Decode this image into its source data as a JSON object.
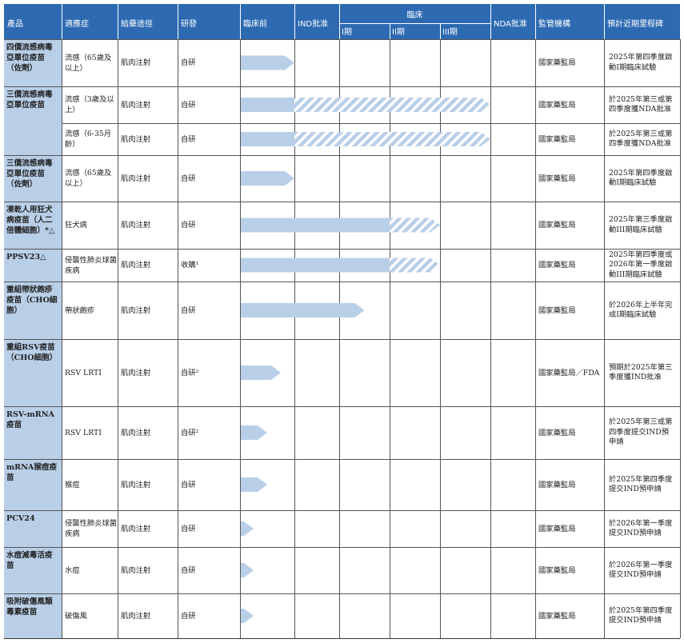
{
  "header": {
    "product": "產品",
    "indication": "適應症",
    "route": "給藥途徑",
    "rnd": "研發",
    "preclinical": "臨床前",
    "ind": "IND批准",
    "clinical": "臨床",
    "phase1": "I期",
    "phase2": "II期",
    "phase3": "III期",
    "nda": "NDA批准",
    "regulator": "監管機構",
    "milestone": "預計近期里程碑"
  },
  "colors": {
    "header_bg": "#2d6ab2",
    "product_bg": "#b9cfe8",
    "bar_fill": "#b9cfe8"
  },
  "products": [
    {
      "name": "四價流感病毒亞單位疫苗（佐劑）"
    },
    {
      "name": "三價流感病毒亞單位疫苗"
    },
    {
      "name": "三價流感病毒亞單位疫苗（佐劑）"
    },
    {
      "name": "凍乾人用狂犬病疫苗（人二倍體細胞）*△"
    },
    {
      "name": "PPSV23△"
    },
    {
      "name": "重組帶狀皰疹疫苗（CHO細胞）"
    },
    {
      "name": "重組RSV疫苗（CHO細胞）"
    },
    {
      "name": "RSV-mRNA疫苗"
    },
    {
      "name": "mRNA猴痘疫苗"
    },
    {
      "name": "PCV24"
    },
    {
      "name": "水痘減毒活疫苗"
    },
    {
      "name": "吸附破傷風類毒素疫苗"
    }
  ],
  "rows": [
    {
      "indication": "流感（65歲及以上）",
      "route": "肌肉注射",
      "rnd": "自研",
      "regulator": "國家藥監局",
      "milestone": "2025年第四季度啟動I期臨床試驗",
      "progress_stage": 1.0,
      "hatched_to_stage": 0
    },
    {
      "indication": "流感（3歲及以上）",
      "route": "肌肉注射",
      "rnd": "自研",
      "regulator": "國家藥監局",
      "milestone": "於2025年第三或第四季度獲NDA批准",
      "progress_stage": 1.0,
      "hatched_to_stage": 5.0
    },
    {
      "indication": "流感（6-35月齡）",
      "route": "肌肉注射",
      "rnd": "自研",
      "regulator": "國家藥監局",
      "milestone": "於2025年第三或第四季度獲NDA批准",
      "progress_stage": 1.0,
      "hatched_to_stage": 5.0
    },
    {
      "indication": "流感（65歲及以上）",
      "route": "肌肉注射",
      "rnd": "自研",
      "regulator": "國家藥監局",
      "milestone": "2025年第四季度啟動I期臨床試驗",
      "progress_stage": 1.0,
      "hatched_to_stage": 0
    },
    {
      "indication": "狂犬病",
      "route": "肌肉注射",
      "rnd": "自研",
      "regulator": "國家藥監局",
      "milestone": "2025年第三季度啟動III期臨床試驗",
      "progress_stage": 3.0,
      "hatched_to_stage": 4.0
    },
    {
      "indication": "侵襲性肺炎球菌疾病",
      "route": "肌肉注射",
      "rnd": "收購¹",
      "regulator": "國家藥監局",
      "milestone": "2025年第四季度或2026年第一季度啟動III期臨床試驗",
      "progress_stage": 3.0,
      "hatched_to_stage": 4.0
    },
    {
      "indication": "帶狀皰疹",
      "route": "肌肉注射",
      "rnd": "自研",
      "regulator": "國家藥監局",
      "milestone": "於2026年上半年完成I期臨床試驗",
      "progress_stage": 2.5,
      "hatched_to_stage": 0
    },
    {
      "indication": "RSV LRTI",
      "route": "肌肉注射",
      "rnd": "自研²",
      "regulator": "國家藥監局／FDA",
      "milestone": "預期於2025年第三季度獲IND批准",
      "progress_stage": 0.75,
      "hatched_to_stage": 0
    },
    {
      "indication": "RSV LRTI",
      "route": "肌肉注射",
      "rnd": "自研²",
      "regulator": "國家藥監局",
      "milestone": "於2025年第三或第四季度提交IND預申請",
      "progress_stage": 0.5,
      "hatched_to_stage": 0
    },
    {
      "indication": "猴痘",
      "route": "肌肉注射",
      "rnd": "自研",
      "regulator": "國家藥監局",
      "milestone": "於2025年第四季度提交IND預申請",
      "progress_stage": 0.5,
      "hatched_to_stage": 0
    },
    {
      "indication": "侵襲性肺炎球菌疾病",
      "route": "肌肉注射",
      "rnd": "自研",
      "regulator": "國家藥監局",
      "milestone": "於2026年第一季度提交IND預申請",
      "progress_stage": 0.25,
      "hatched_to_stage": 0
    },
    {
      "indication": "水痘",
      "route": "肌肉注射",
      "rnd": "自研",
      "regulator": "國家藥監局",
      "milestone": "於2026年第一季度提交IND預申請",
      "progress_stage": 0.25,
      "hatched_to_stage": 0
    },
    {
      "indication": "破傷風",
      "route": "肌肉注射",
      "rnd": "自研",
      "regulator": "國家藥監局",
      "milestone": "於2025年第四季度提交IND預申請",
      "progress_stage": 0.25,
      "hatched_to_stage": 0
    }
  ]
}
